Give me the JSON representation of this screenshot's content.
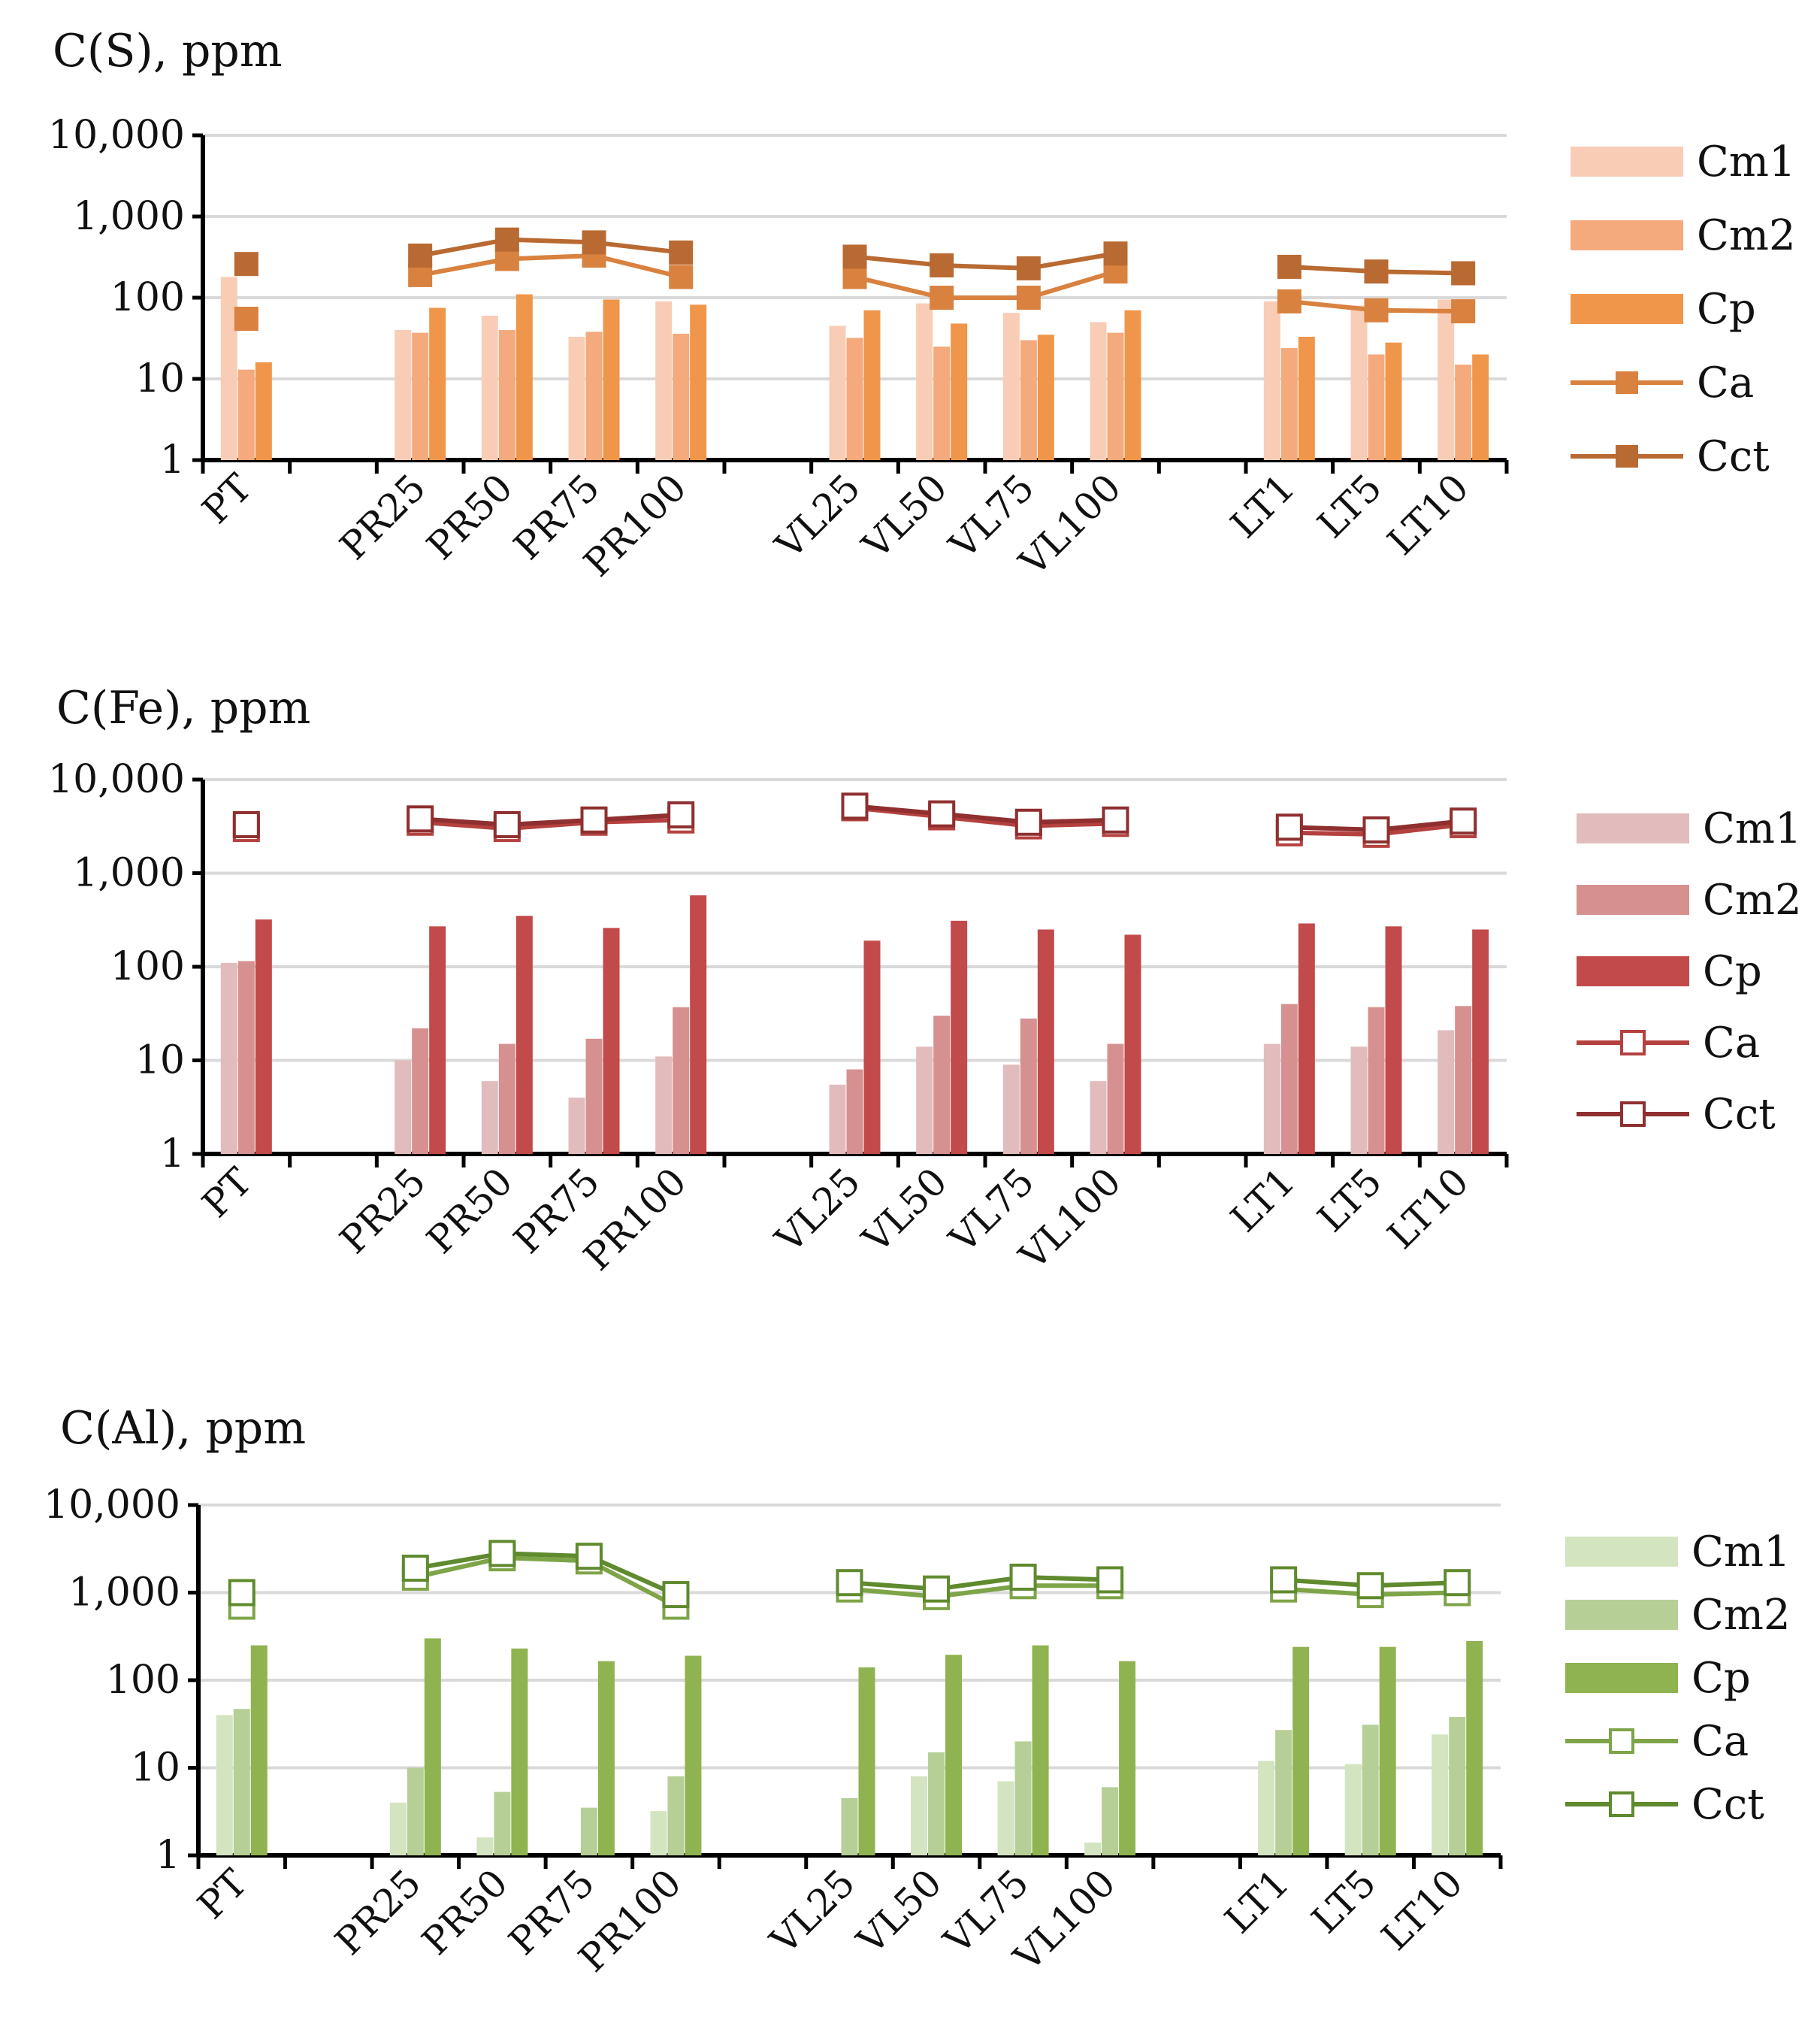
{
  "chart_data": [
    {
      "type": "bar+line",
      "title": "C(S), ppm",
      "yscale": "log",
      "ylim": [
        1,
        10000
      ],
      "yticks": [
        "1",
        "10",
        "100",
        "1,000",
        "10,000"
      ],
      "categories": [
        "PT",
        "",
        "PR25",
        "PR50",
        "PR75",
        "PR100",
        "",
        "VL25",
        "VL50",
        "VL75",
        "VL100",
        "",
        "LT1",
        "LT5",
        "LT10"
      ],
      "colors": {
        "Cm1": "#f9cdb5",
        "Cm2": "#f4aa7c",
        "Cp": "#f0964a",
        "Ca": "#d9813f",
        "Cct": "#b96a32"
      },
      "marker": "filled-square",
      "series": [
        {
          "name": "Cm1",
          "kind": "bar",
          "values": [
            180,
            null,
            40,
            60,
            33,
            90,
            null,
            45,
            85,
            65,
            50,
            null,
            90,
            80,
            95
          ]
        },
        {
          "name": "Cm2",
          "kind": "bar",
          "values": [
            13,
            null,
            37,
            40,
            38,
            36,
            null,
            32,
            25,
            30,
            37,
            null,
            24,
            20,
            15
          ]
        },
        {
          "name": "Cp",
          "kind": "bar",
          "values": [
            16,
            null,
            75,
            110,
            95,
            82,
            null,
            70,
            48,
            35,
            70,
            null,
            33,
            28,
            20
          ]
        },
        {
          "name": "Ca",
          "kind": "line",
          "values": [
            55,
            null,
            190,
            300,
            330,
            180,
            null,
            180,
            100,
            100,
            210,
            null,
            90,
            70,
            68
          ]
        },
        {
          "name": "Cct",
          "kind": "line",
          "values": [
            260,
            null,
            330,
            520,
            480,
            360,
            null,
            320,
            250,
            230,
            350,
            null,
            240,
            210,
            200
          ]
        }
      ],
      "legend": [
        "Cm1",
        "Cm2",
        "Cp",
        "Ca",
        "Cct"
      ],
      "legend_position": "right"
    },
    {
      "type": "bar+line",
      "title": "C(Fe), ppm",
      "yscale": "log",
      "ylim": [
        1,
        10000
      ],
      "yticks": [
        "1",
        "10",
        "100",
        "1,000",
        "10,000"
      ],
      "categories": [
        "PT",
        "",
        "PR25",
        "PR50",
        "PR75",
        "PR100",
        "",
        "VL25",
        "VL50",
        "VL75",
        "VL100",
        "",
        "LT1",
        "LT5",
        "LT10"
      ],
      "colors": {
        "Cm1": "#e2bcbc",
        "Cm2": "#d79090",
        "Cp": "#c24a4a",
        "Ca": "#b5413f",
        "Cct": "#8f2f2f"
      },
      "marker": "open-square",
      "series": [
        {
          "name": "Cm1",
          "kind": "bar",
          "values": [
            110,
            null,
            10,
            6,
            4,
            11,
            null,
            5.5,
            14,
            9,
            6,
            null,
            15,
            14,
            21
          ]
        },
        {
          "name": "Cm2",
          "kind": "bar",
          "values": [
            115,
            null,
            22,
            15,
            17,
            37,
            null,
            8,
            30,
            28,
            15,
            null,
            40,
            37,
            38
          ]
        },
        {
          "name": "Cp",
          "kind": "bar",
          "values": [
            320,
            null,
            270,
            350,
            260,
            580,
            null,
            190,
            310,
            250,
            220,
            null,
            290,
            270,
            250
          ]
        },
        {
          "name": "Ca",
          "kind": "line",
          "values": [
            3000,
            null,
            3500,
            3000,
            3500,
            3700,
            null,
            5000,
            4000,
            3200,
            3400,
            null,
            2700,
            2600,
            3300
          ]
        },
        {
          "name": "Cct",
          "kind": "line",
          "values": [
            3300,
            null,
            3800,
            3300,
            3700,
            4200,
            null,
            5200,
            4300,
            3500,
            3700,
            null,
            3100,
            2900,
            3600
          ]
        }
      ],
      "legend": [
        "Cm1",
        "Cm2",
        "Cp",
        "Ca",
        "Cct"
      ],
      "legend_position": "right"
    },
    {
      "type": "bar+line",
      "title": "C(Al), ppm",
      "yscale": "log",
      "ylim": [
        1,
        10000
      ],
      "yticks": [
        "1",
        "10",
        "100",
        "1,000",
        "10,000"
      ],
      "categories": [
        "PT",
        "",
        "PR25",
        "PR50",
        "PR75",
        "PR100",
        "",
        "VL25",
        "VL50",
        "VL75",
        "VL100",
        "",
        "LT1",
        "LT5",
        "LT10"
      ],
      "colors": {
        "Cm1": "#d3e4c1",
        "Cm2": "#b6cf96",
        "Cp": "#8fb350",
        "Ca": "#7ea448",
        "Cct": "#5f8a2e"
      },
      "marker": "open-square",
      "series": [
        {
          "name": "Cm1",
          "kind": "bar",
          "values": [
            40,
            null,
            4,
            1.6,
            null,
            3.2,
            null,
            null,
            8,
            7,
            1.4,
            null,
            12,
            11,
            24
          ]
        },
        {
          "name": "Cm2",
          "kind": "bar",
          "values": [
            47,
            null,
            10,
            5.3,
            3.5,
            8,
            null,
            4.5,
            15,
            20,
            6,
            null,
            27,
            31,
            38
          ]
        },
        {
          "name": "Cp",
          "kind": "bar",
          "values": [
            250,
            null,
            300,
            230,
            165,
            190,
            null,
            140,
            195,
            250,
            165,
            null,
            240,
            240,
            280
          ]
        },
        {
          "name": "Ca",
          "kind": "line",
          "values": [
            700,
            null,
            1500,
            2500,
            2300,
            700,
            null,
            1100,
            900,
            1200,
            1200,
            null,
            1100,
            950,
            1000
          ]
        },
        {
          "name": "Cct",
          "kind": "line",
          "values": [
            1000,
            null,
            1900,
            2800,
            2600,
            950,
            null,
            1300,
            1100,
            1500,
            1400,
            null,
            1400,
            1200,
            1300
          ]
        }
      ],
      "legend": [
        "Cm1",
        "Cm2",
        "Cp",
        "Ca",
        "Cct"
      ],
      "legend_position": "right"
    }
  ]
}
